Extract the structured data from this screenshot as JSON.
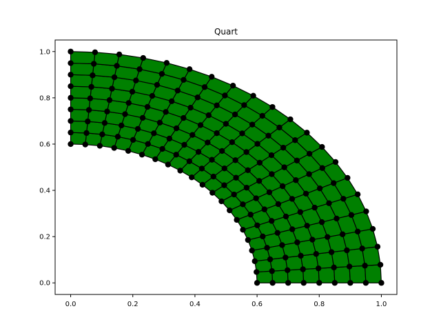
{
  "chart_data": {
    "type": "mesh",
    "title": "Quart",
    "xlabel": "",
    "ylabel": "",
    "xlim": [
      -0.05,
      1.05
    ],
    "ylim": [
      -0.05,
      1.05
    ],
    "xticks": [
      "0.0",
      "0.2",
      "0.4",
      "0.6",
      "0.8",
      "1.0"
    ],
    "yticks": [
      "0.0",
      "0.2",
      "0.4",
      "0.6",
      "0.8",
      "1.0"
    ],
    "grid": false,
    "geometry": {
      "shape": "quarter-annulus",
      "inner_radius": 0.6,
      "outer_radius": 1.0,
      "angle_start_deg": 0,
      "angle_end_deg": 90,
      "radial_nodes": 9,
      "angular_nodes": 21
    },
    "colors": {
      "fill": "#008000",
      "edge": "#000000",
      "node": "#000000"
    }
  }
}
